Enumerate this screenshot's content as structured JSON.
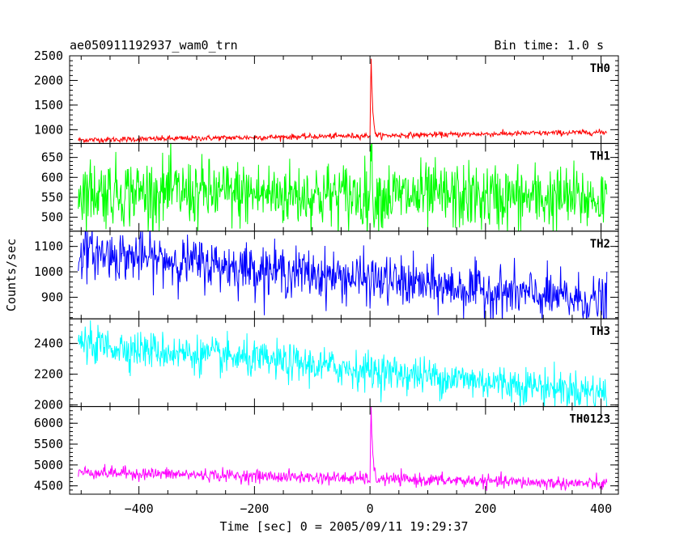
{
  "chart_data": {
    "type": "line",
    "title_left": "ae050911192937_wam0_trn",
    "title_right": "Bin time: 1.0 s",
    "xlabel": "Time [sec] 0 = 2005/09/11 19:29:37",
    "ylabel": "Counts/sec",
    "xlim": [
      -520,
      430
    ],
    "xticks": [
      -400,
      -200,
      0,
      200,
      400
    ],
    "panels": [
      {
        "name": "TH0",
        "color": "#ff0000",
        "ylim": [
          720,
          2500
        ],
        "yticks": [
          1000,
          1500,
          2000,
          2500
        ],
        "baseline_start": 790,
        "baseline_end": 950,
        "noise": 28,
        "peak": 2480,
        "peak_time": 2
      },
      {
        "name": "TH1",
        "color": "#00ff00",
        "ylim": [
          465,
          685
        ],
        "yticks": [
          500,
          550,
          600,
          650
        ],
        "baseline_start": 565,
        "baseline_end": 545,
        "noise": 42,
        "peak": 680,
        "peak_time": 2
      },
      {
        "name": "TH2",
        "color": "#0000ff",
        "ylim": [
          815,
          1160
        ],
        "yticks": [
          900,
          1000,
          1100
        ],
        "baseline_start": 1080,
        "baseline_end": 880,
        "noise": 48,
        "peak": 1020,
        "peak_time": 2
      },
      {
        "name": "TH3",
        "color": "#00ffff",
        "ylim": [
          1990,
          2560
        ],
        "yticks": [
          2000,
          2200,
          2400
        ],
        "baseline_start": 2400,
        "baseline_end": 2080,
        "noise": 60,
        "peak": 2360,
        "peak_time": 2
      },
      {
        "name": "TH0123",
        "color": "#ff00ff",
        "ylim": [
          4300,
          6400
        ],
        "yticks": [
          4500,
          5000,
          5500,
          6000
        ],
        "baseline_start": 4830,
        "baseline_end": 4540,
        "noise": 75,
        "peak": 6350,
        "peak_time": 2
      }
    ]
  }
}
